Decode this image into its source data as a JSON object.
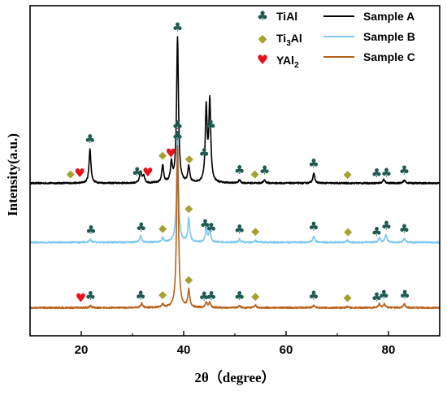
{
  "chart_data": {
    "type": "line",
    "xlabel": "2θ（degree）",
    "ylabel": "Intensity(a.u.)",
    "xlim": [
      10,
      90
    ],
    "x_ticks": [
      "20",
      "40",
      "60",
      "80"
    ],
    "phase_legend": [
      {
        "symbol": "♣",
        "label_main": "TiAl",
        "label_sub": "",
        "label_tail": "",
        "color": "#1f5a52"
      },
      {
        "symbol": "◆",
        "label_main": "Ti",
        "label_sub": "3",
        "label_tail": "Al",
        "color": "#a6a02e"
      },
      {
        "symbol": "♥",
        "label_main": "YAl",
        "label_sub": "2",
        "label_tail": "",
        "color": "#e8121c"
      }
    ],
    "series": [
      {
        "name": "Sample A",
        "color": "#000000",
        "baseline": 0.95,
        "peaks": [
          {
            "x": 21.7,
            "h": 0.55
          },
          {
            "x": 31.6,
            "h": 0.18
          },
          {
            "x": 32.2,
            "h": 0.12
          },
          {
            "x": 35.9,
            "h": 0.28
          },
          {
            "x": 37.6,
            "h": 0.3
          },
          {
            "x": 38.8,
            "h": 2.33
          },
          {
            "x": 41.0,
            "h": 0.26
          },
          {
            "x": 44.4,
            "h": 1.18
          },
          {
            "x": 45.1,
            "h": 1.3
          },
          {
            "x": 50.9,
            "h": 0.05
          },
          {
            "x": 55.8,
            "h": 0.05
          },
          {
            "x": 65.4,
            "h": 0.16
          },
          {
            "x": 79.1,
            "h": 0.06
          },
          {
            "x": 83.1,
            "h": 0.05
          }
        ]
      },
      {
        "name": "Sample B",
        "color": "#7ec8ee",
        "baseline": 0.0,
        "peaks": [
          {
            "x": 21.8,
            "h": 0.05
          },
          {
            "x": 31.6,
            "h": 0.1
          },
          {
            "x": 35.9,
            "h": 0.07
          },
          {
            "x": 38.8,
            "h": 1.72
          },
          {
            "x": 41.0,
            "h": 0.38
          },
          {
            "x": 44.4,
            "h": 0.22
          },
          {
            "x": 45.1,
            "h": 0.19
          },
          {
            "x": 50.9,
            "h": 0.05
          },
          {
            "x": 54.0,
            "h": 0.03
          },
          {
            "x": 65.4,
            "h": 0.1
          },
          {
            "x": 72.0,
            "h": 0.03
          },
          {
            "x": 78.2,
            "h": 0.08
          },
          {
            "x": 79.5,
            "h": 0.13
          },
          {
            "x": 83.1,
            "h": 0.06
          }
        ]
      },
      {
        "name": "Sample C",
        "color": "#b8621b",
        "baseline": -1.05,
        "peaks": [
          {
            "x": 21.8,
            "h": 0.03
          },
          {
            "x": 31.8,
            "h": 0.07
          },
          {
            "x": 35.9,
            "h": 0.05
          },
          {
            "x": 38.8,
            "h": 2.6
          },
          {
            "x": 41.0,
            "h": 0.28
          },
          {
            "x": 44.4,
            "h": 0.08
          },
          {
            "x": 45.1,
            "h": 0.08
          },
          {
            "x": 50.9,
            "h": 0.03
          },
          {
            "x": 54.0,
            "h": 0.04
          },
          {
            "x": 65.4,
            "h": 0.04
          },
          {
            "x": 72.0,
            "h": 0.02
          },
          {
            "x": 78.2,
            "h": 0.06
          },
          {
            "x": 79.2,
            "h": 0.06
          },
          {
            "x": 83.1,
            "h": 0.06
          }
        ]
      }
    ],
    "annotations": [
      {
        "series": 0,
        "x": 17.9,
        "symbol": "diamond"
      },
      {
        "series": 0,
        "x": 19.7,
        "symbol": "heart"
      },
      {
        "series": 0,
        "x": 21.7,
        "symbol": "club"
      },
      {
        "series": 0,
        "x": 30.9,
        "symbol": "club"
      },
      {
        "series": 0,
        "x": 33.0,
        "symbol": "heart"
      },
      {
        "series": 0,
        "x": 35.9,
        "symbol": "diamond"
      },
      {
        "series": 0,
        "x": 37.5,
        "symbol": "heart"
      },
      {
        "series": 0,
        "x": 38.8,
        "symbol": "club"
      },
      {
        "series": 0,
        "x": 41.1,
        "symbol": "diamond"
      },
      {
        "series": 0,
        "x": 44.0,
        "symbol": "club"
      },
      {
        "series": 0,
        "x": 45.3,
        "symbol": "club"
      },
      {
        "series": 0,
        "x": 50.9,
        "symbol": "club"
      },
      {
        "series": 0,
        "x": 53.9,
        "symbol": "diamond"
      },
      {
        "series": 0,
        "x": 55.8,
        "symbol": "club"
      },
      {
        "series": 0,
        "x": 65.4,
        "symbol": "club"
      },
      {
        "series": 0,
        "x": 72.0,
        "symbol": "diamond"
      },
      {
        "series": 0,
        "x": 77.7,
        "symbol": "club"
      },
      {
        "series": 0,
        "x": 79.6,
        "symbol": "club"
      },
      {
        "series": 0,
        "x": 83.1,
        "symbol": "club"
      },
      {
        "series": 1,
        "x": 21.9,
        "symbol": "club"
      },
      {
        "series": 1,
        "x": 31.7,
        "symbol": "club"
      },
      {
        "series": 1,
        "x": 35.9,
        "symbol": "diamond"
      },
      {
        "series": 1,
        "x": 38.8,
        "symbol": "club"
      },
      {
        "series": 1,
        "x": 41.0,
        "symbol": "diamond"
      },
      {
        "series": 1,
        "x": 44.2,
        "symbol": "club"
      },
      {
        "series": 1,
        "x": 45.4,
        "symbol": "club"
      },
      {
        "series": 1,
        "x": 50.9,
        "symbol": "club"
      },
      {
        "series": 1,
        "x": 54.0,
        "symbol": "diamond"
      },
      {
        "series": 1,
        "x": 65.4,
        "symbol": "club"
      },
      {
        "series": 1,
        "x": 72.1,
        "symbol": "diamond"
      },
      {
        "series": 1,
        "x": 77.7,
        "symbol": "club"
      },
      {
        "series": 1,
        "x": 79.6,
        "symbol": "club"
      },
      {
        "series": 1,
        "x": 83.1,
        "symbol": "club"
      },
      {
        "series": 2,
        "x": 19.9,
        "symbol": "heart"
      },
      {
        "series": 2,
        "x": 21.8,
        "symbol": "club"
      },
      {
        "series": 2,
        "x": 31.6,
        "symbol": "club"
      },
      {
        "series": 2,
        "x": 35.9,
        "symbol": "diamond"
      },
      {
        "series": 2,
        "x": 38.8,
        "symbol": "club"
      },
      {
        "series": 2,
        "x": 41.0,
        "symbol": "diamond"
      },
      {
        "series": 2,
        "x": 44.0,
        "symbol": "club"
      },
      {
        "series": 2,
        "x": 45.4,
        "symbol": "club"
      },
      {
        "series": 2,
        "x": 50.9,
        "symbol": "club"
      },
      {
        "series": 2,
        "x": 54.0,
        "symbol": "diamond"
      },
      {
        "series": 2,
        "x": 65.4,
        "symbol": "club"
      },
      {
        "series": 2,
        "x": 72.0,
        "symbol": "diamond"
      },
      {
        "series": 2,
        "x": 77.7,
        "symbol": "club"
      },
      {
        "series": 2,
        "x": 79.1,
        "symbol": "club"
      },
      {
        "series": 2,
        "x": 83.2,
        "symbol": "club"
      }
    ]
  }
}
